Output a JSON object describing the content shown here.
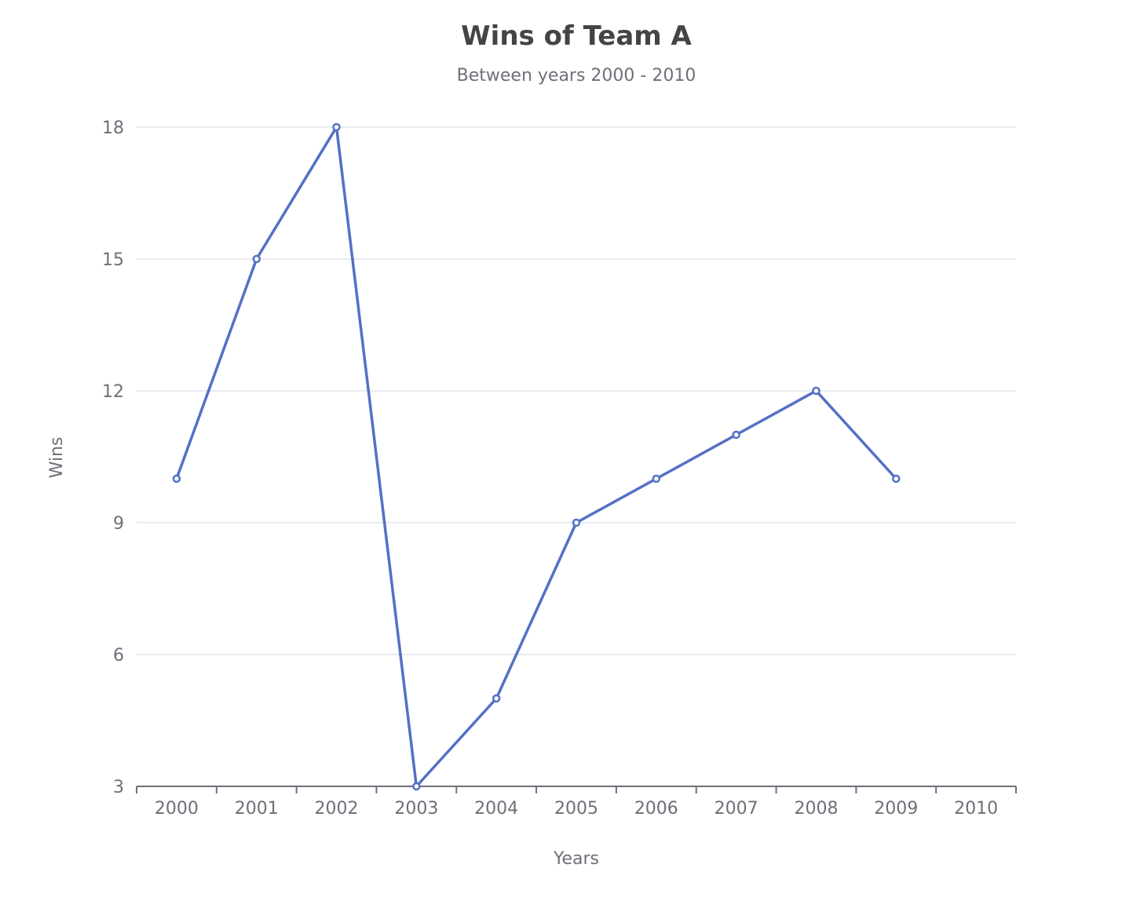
{
  "chart_data": {
    "type": "line",
    "title": "Wins of Team A",
    "subtitle": "Between years 2000 - 2010",
    "xlabel": "Years",
    "ylabel": "Wins",
    "categories": [
      "2000",
      "2001",
      "2002",
      "2003",
      "2004",
      "2005",
      "2006",
      "2007",
      "2008",
      "2009",
      "2010"
    ],
    "series": [
      {
        "values": [
          10,
          15,
          18,
          3,
          5,
          9,
          10,
          11,
          12,
          10,
          null
        ]
      }
    ],
    "y_ticks": [
      "3",
      "6",
      "9",
      "12",
      "15",
      "18"
    ],
    "ylim": [
      3,
      18
    ],
    "grid": true,
    "legend": "none",
    "colors": {
      "series": "#5470c6",
      "axis": "#6e7079",
      "grid": "#e0e3ea",
      "title": "#444444"
    }
  }
}
